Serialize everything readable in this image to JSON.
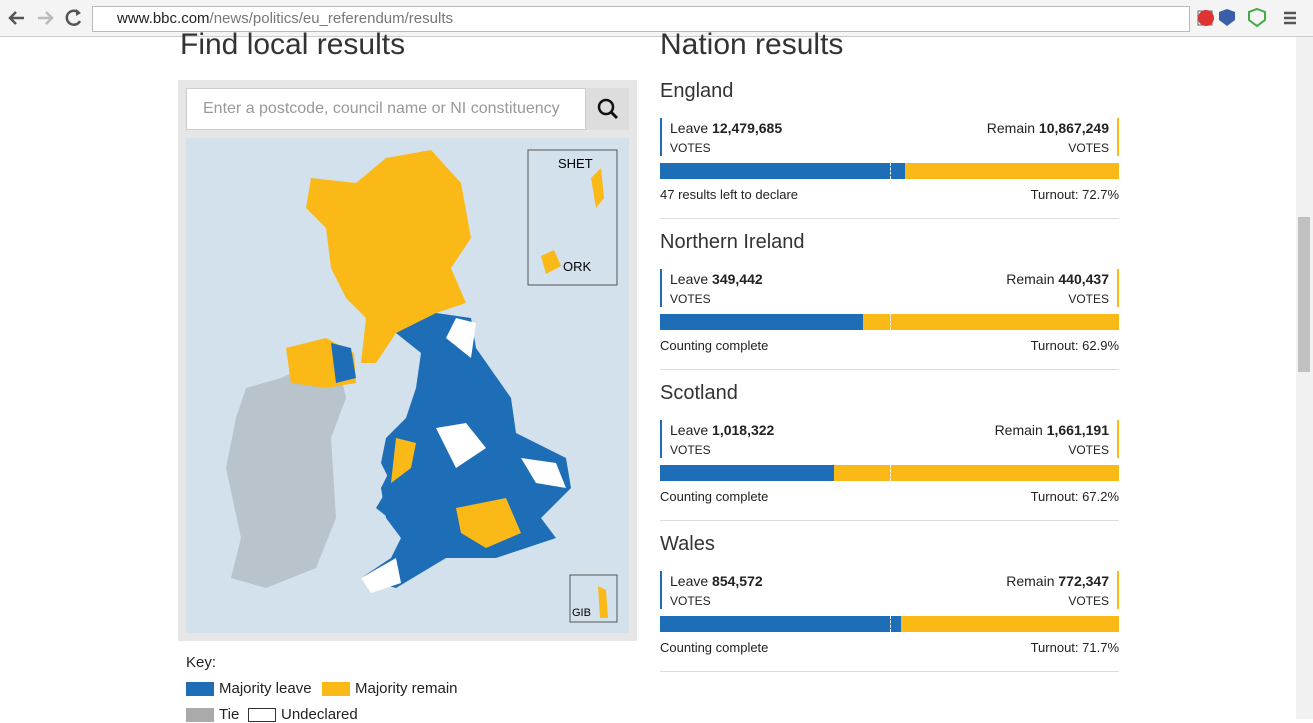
{
  "browser": {
    "url_host": "www.bbc.com",
    "url_path": "/news/politics/eu_referendum/results"
  },
  "local": {
    "title": "Find local results",
    "search_placeholder": "Enter a postcode, council name or NI constituency",
    "map_labels": [
      "SHET",
      "ORK",
      "GIB"
    ],
    "key": {
      "title": "Key:",
      "items": [
        "Majority leave",
        "Majority remain",
        "Tie",
        "Undeclared"
      ]
    }
  },
  "nations": {
    "title": "Nation results",
    "items": [
      {
        "name": "England",
        "leave_label": "Leave",
        "leave": {
          "value": 12479685,
          "label": "12,479,685"
        },
        "remain_label": "Remain",
        "remain": {
          "value": 10867249,
          "label": "10,867,249"
        },
        "leave_votes": "VOTES",
        "remain_votes": "VOTES",
        "status": "47 results left to declare",
        "turnout": "Turnout: 72.7%"
      },
      {
        "name": "Northern Ireland",
        "leave_label": "Leave",
        "leave": {
          "value": 349442,
          "label": "349,442"
        },
        "remain_label": "Remain",
        "remain": {
          "value": 440437,
          "label": "440,437"
        },
        "leave_votes": "VOTES",
        "remain_votes": "VOTES",
        "status": "Counting complete",
        "turnout": "Turnout: 62.9%"
      },
      {
        "name": "Scotland",
        "leave_label": "Leave",
        "leave": {
          "value": 1018322,
          "label": "1,018,322"
        },
        "remain_label": "Remain",
        "remain": {
          "value": 1661191,
          "label": "1,661,191"
        },
        "leave_votes": "VOTES",
        "remain_votes": "VOTES",
        "status": "Counting complete",
        "turnout": "Turnout: 67.2%"
      },
      {
        "name": "Wales",
        "leave_label": "Leave",
        "leave": {
          "value": 854572,
          "label": "854,572"
        },
        "remain_label": "Remain",
        "remain": {
          "value": 772347,
          "label": "772,347"
        },
        "leave_votes": "VOTES",
        "remain_votes": "VOTES",
        "status": "Counting complete",
        "turnout": "Turnout: 71.7%"
      }
    ]
  }
}
